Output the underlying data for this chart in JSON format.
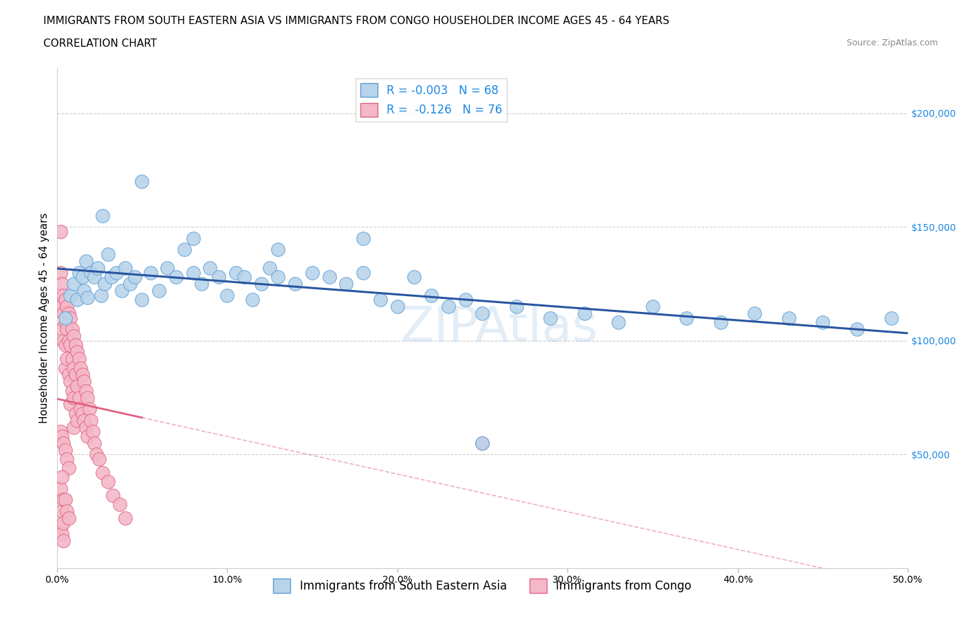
{
  "title_line1": "IMMIGRANTS FROM SOUTH EASTERN ASIA VS IMMIGRANTS FROM CONGO HOUSEHOLDER INCOME AGES 45 - 64 YEARS",
  "title_line2": "CORRELATION CHART",
  "source_text": "Source: ZipAtlas.com",
  "ylabel": "Householder Income Ages 45 - 64 years",
  "xlim": [
    0.0,
    0.5
  ],
  "ylim": [
    0,
    220000
  ],
  "yticks": [
    0,
    50000,
    100000,
    150000,
    200000
  ],
  "ytick_labels": [
    "",
    "$50,000",
    "$100,000",
    "$150,000",
    "$200,000"
  ],
  "xticks": [
    0.0,
    0.1,
    0.2,
    0.3,
    0.4,
    0.5
  ],
  "xtick_labels": [
    "0.0%",
    "10.0%",
    "20.0%",
    "30.0%",
    "40.0%",
    "50.0%"
  ],
  "series_blue": {
    "label": "Immigrants from South Eastern Asia",
    "R_text": "R = -0.003",
    "N_text": "N = 68",
    "color": "#b8d4ea",
    "edge_color": "#5b9bd5",
    "line_color": "#2955a0",
    "x": [
      0.005,
      0.008,
      0.01,
      0.012,
      0.013,
      0.015,
      0.016,
      0.017,
      0.018,
      0.02,
      0.022,
      0.024,
      0.026,
      0.028,
      0.03,
      0.032,
      0.035,
      0.038,
      0.04,
      0.043,
      0.046,
      0.05,
      0.055,
      0.06,
      0.065,
      0.07,
      0.075,
      0.08,
      0.085,
      0.09,
      0.095,
      0.1,
      0.105,
      0.11,
      0.115,
      0.12,
      0.125,
      0.13,
      0.14,
      0.15,
      0.16,
      0.17,
      0.18,
      0.19,
      0.2,
      0.21,
      0.22,
      0.23,
      0.24,
      0.25,
      0.27,
      0.29,
      0.31,
      0.33,
      0.35,
      0.37,
      0.39,
      0.41,
      0.43,
      0.45,
      0.47,
      0.49,
      0.027,
      0.05,
      0.08,
      0.13,
      0.18,
      0.25
    ],
    "y": [
      110000,
      120000,
      125000,
      118000,
      130000,
      128000,
      122000,
      135000,
      119000,
      130000,
      128000,
      132000,
      120000,
      125000,
      138000,
      128000,
      130000,
      122000,
      132000,
      125000,
      128000,
      118000,
      130000,
      122000,
      132000,
      128000,
      140000,
      130000,
      125000,
      132000,
      128000,
      120000,
      130000,
      128000,
      118000,
      125000,
      132000,
      128000,
      125000,
      130000,
      128000,
      125000,
      130000,
      118000,
      115000,
      128000,
      120000,
      115000,
      118000,
      112000,
      115000,
      110000,
      112000,
      108000,
      115000,
      110000,
      108000,
      112000,
      110000,
      108000,
      105000,
      110000,
      155000,
      170000,
      145000,
      140000,
      145000,
      55000
    ]
  },
  "series_pink": {
    "label": "Immigrants from Congo",
    "R_text": "R =  -0.126",
    "N_text": "N = 76",
    "color": "#f4b8c8",
    "edge_color": "#e06080",
    "line_color": "#e06080",
    "x": [
      0.002,
      0.002,
      0.003,
      0.003,
      0.003,
      0.004,
      0.004,
      0.004,
      0.005,
      0.005,
      0.005,
      0.005,
      0.006,
      0.006,
      0.006,
      0.007,
      0.007,
      0.007,
      0.008,
      0.008,
      0.008,
      0.008,
      0.009,
      0.009,
      0.009,
      0.01,
      0.01,
      0.01,
      0.01,
      0.011,
      0.011,
      0.011,
      0.012,
      0.012,
      0.012,
      0.013,
      0.013,
      0.014,
      0.014,
      0.015,
      0.015,
      0.016,
      0.016,
      0.017,
      0.017,
      0.018,
      0.018,
      0.019,
      0.02,
      0.021,
      0.022,
      0.023,
      0.025,
      0.027,
      0.03,
      0.033,
      0.037,
      0.04,
      0.002,
      0.003,
      0.004,
      0.005,
      0.006,
      0.007,
      0.002,
      0.003,
      0.004,
      0.003,
      0.002,
      0.004,
      0.003,
      0.004,
      0.005,
      0.006,
      0.007,
      0.25
    ],
    "y": [
      148000,
      130000,
      125000,
      115000,
      105000,
      120000,
      112000,
      100000,
      118000,
      108000,
      98000,
      88000,
      115000,
      105000,
      92000,
      112000,
      100000,
      85000,
      110000,
      98000,
      82000,
      72000,
      105000,
      92000,
      78000,
      102000,
      88000,
      75000,
      62000,
      98000,
      85000,
      68000,
      95000,
      80000,
      65000,
      92000,
      75000,
      88000,
      70000,
      85000,
      68000,
      82000,
      65000,
      78000,
      62000,
      75000,
      58000,
      70000,
      65000,
      60000,
      55000,
      50000,
      48000,
      42000,
      38000,
      32000,
      28000,
      22000,
      60000,
      58000,
      55000,
      52000,
      48000,
      44000,
      18000,
      15000,
      12000,
      25000,
      35000,
      30000,
      40000,
      20000,
      30000,
      25000,
      22000,
      55000
    ]
  },
  "background_color": "#ffffff",
  "grid_color": "#cccccc",
  "title_fontsize": 11,
  "axis_label_fontsize": 11,
  "tick_fontsize": 10,
  "legend_fontsize": 12
}
